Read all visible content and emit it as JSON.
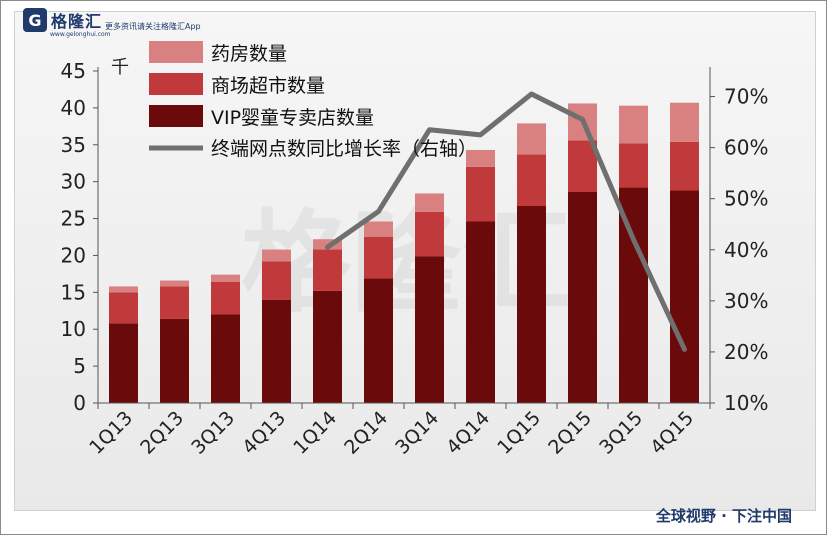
{
  "brand": {
    "mark": "G",
    "name": "格隆汇",
    "site": "www.gelonghui.com",
    "slogan": "更多资讯请关注格隆汇App"
  },
  "footer": {
    "tagline": "全球视野 · 下注中国"
  },
  "chart_data": {
    "type": "bar",
    "stacked": true,
    "categories": [
      "1Q13",
      "2Q13",
      "3Q13",
      "4Q13",
      "1Q14",
      "2Q14",
      "3Q14",
      "4Q14",
      "1Q15",
      "2Q15",
      "3Q15",
      "4Q15"
    ],
    "series": [
      {
        "name": "VIP婴童专卖店数量",
        "values": [
          10.8,
          11.4,
          12.0,
          14.0,
          15.2,
          16.9,
          19.9,
          24.6,
          26.7,
          28.6,
          29.2,
          28.8
        ],
        "color": "#6b0a0a"
      },
      {
        "name": "商场超市数量",
        "values": [
          4.2,
          4.4,
          4.4,
          5.2,
          5.6,
          5.6,
          6.0,
          7.4,
          7.0,
          7.0,
          6.0,
          6.6
        ],
        "color": "#c0393b"
      },
      {
        "name": "药房数量",
        "values": [
          0.8,
          0.8,
          1.0,
          1.6,
          1.4,
          2.1,
          2.5,
          2.3,
          4.2,
          5.0,
          5.1,
          5.3
        ],
        "color": "#d98080"
      }
    ],
    "line_series": {
      "name": "终端网点数同比增长率（右轴）",
      "axis": "right",
      "x": [
        "1Q14",
        "2Q14",
        "3Q14",
        "4Q14",
        "1Q15",
        "2Q15",
        "3Q15",
        "4Q15"
      ],
      "values": [
        40.5,
        47.5,
        63.5,
        62.5,
        70.5,
        65.5,
        42.0,
        20.5
      ],
      "color": "#6f6f6f"
    },
    "ylabel": "千",
    "ylim": [
      0,
      45
    ],
    "yticks": [
      "0",
      "5",
      "10",
      "15",
      "20",
      "25",
      "30",
      "35",
      "40",
      "45"
    ],
    "y2lim": [
      10,
      75
    ],
    "y2ticks": [
      "10%",
      "20%",
      "30%",
      "40%",
      "50%",
      "60%",
      "70%"
    ],
    "legend_position": "top-left"
  }
}
